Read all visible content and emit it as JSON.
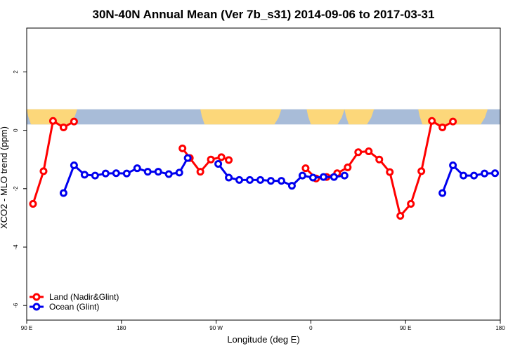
{
  "chart_data": {
    "type": "line",
    "title": "30N-40N Annual Mean (Ver 7b_s31)   2014-09-06 to 2017-03-31",
    "xlabel": "Longitude (deg E)",
    "ylabel": "XCO2 - MLO trend (ppm)",
    "xlim": [
      90,
      540
    ],
    "ylim": [
      -6.5,
      3.5
    ],
    "x_ticks": [
      {
        "value": 90,
        "label": "90 E"
      },
      {
        "value": 180,
        "label": "180"
      },
      {
        "value": 270,
        "label": "90 W"
      },
      {
        "value": 360,
        "label": "0"
      },
      {
        "value": 450,
        "label": "90 E"
      },
      {
        "value": 540,
        "label": "180"
      }
    ],
    "y_ticks": [
      {
        "value": 2,
        "label": "2"
      },
      {
        "value": 0,
        "label": "0"
      },
      {
        "value": -2,
        "label": "-2"
      },
      {
        "value": -4,
        "label": "-4"
      },
      {
        "value": -6,
        "label": "-6"
      }
    ],
    "map_band": {
      "ymin": 0.2,
      "ymax": 0.72,
      "ocean_color": "#a8bcd8",
      "land_color": "#fcd77a"
    },
    "legend": {
      "position": "bottom-left"
    },
    "series": [
      {
        "name": "Land (Nadir&Glint)",
        "color": "#ff0000",
        "segments": [
          [
            [
              96,
              -2.52
            ],
            [
              106,
              -1.4
            ],
            [
              115,
              0.32
            ],
            [
              125,
              0.1
            ],
            [
              135,
              0.3
            ]
          ],
          [
            [
              238,
              -0.62
            ],
            [
              245,
              -0.95
            ],
            [
              255,
              -1.42
            ],
            [
              265,
              -1.0
            ],
            [
              275,
              -0.92
            ],
            [
              282,
              -1.02
            ]
          ],
          [
            [
              355,
              -1.3
            ],
            [
              365,
              -1.65
            ],
            [
              375,
              -1.6
            ],
            [
              385,
              -1.47
            ],
            [
              395,
              -1.27
            ],
            [
              405,
              -0.75
            ],
            [
              415,
              -0.72
            ],
            [
              425,
              -1.0
            ],
            [
              435,
              -1.43
            ],
            [
              445,
              -2.93
            ],
            [
              455,
              -2.52
            ],
            [
              465,
              -1.4
            ],
            [
              475,
              0.32
            ],
            [
              485,
              0.1
            ],
            [
              495,
              0.3
            ]
          ]
        ]
      },
      {
        "name": "Ocean (Glint)",
        "color": "#0000ee",
        "segments": [
          [
            [
              125,
              -2.15
            ],
            [
              135,
              -1.2
            ],
            [
              145,
              -1.52
            ],
            [
              155,
              -1.55
            ],
            [
              165,
              -1.48
            ],
            [
              175,
              -1.47
            ],
            [
              185,
              -1.48
            ],
            [
              195,
              -1.3
            ],
            [
              205,
              -1.42
            ],
            [
              215,
              -1.42
            ],
            [
              225,
              -1.5
            ],
            [
              235,
              -1.45
            ],
            [
              243,
              -0.95
            ]
          ],
          [
            [
              272,
              -1.15
            ],
            [
              282,
              -1.62
            ],
            [
              292,
              -1.7
            ],
            [
              302,
              -1.7
            ],
            [
              312,
              -1.7
            ],
            [
              322,
              -1.73
            ],
            [
              332,
              -1.73
            ],
            [
              342,
              -1.9
            ],
            [
              352,
              -1.55
            ],
            [
              362,
              -1.62
            ],
            [
              372,
              -1.6
            ],
            [
              382,
              -1.6
            ],
            [
              392,
              -1.55
            ]
          ],
          [
            [
              485,
              -2.15
            ],
            [
              495,
              -1.2
            ],
            [
              505,
              -1.55
            ],
            [
              515,
              -1.55
            ],
            [
              525,
              -1.48
            ],
            [
              535,
              -1.47
            ]
          ]
        ]
      }
    ]
  }
}
